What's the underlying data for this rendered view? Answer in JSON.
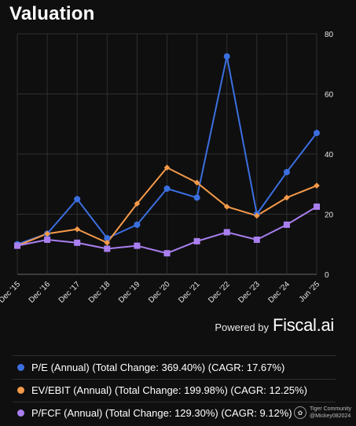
{
  "title": "Valuation",
  "powered": {
    "by": "Powered by",
    "brand": "Fiscal.ai"
  },
  "watermark": {
    "line1": "Tiger Community",
    "line2": "@Mickey082024",
    "icon": "tiger-logo-icon"
  },
  "legend": [
    {
      "label": "P/E (Annual) (Total Change: 369.40%) (CAGR: 17.67%)",
      "color": "#3b6fe0"
    },
    {
      "label": "EV/EBIT (Annual) (Total Change: 199.98%) (CAGR: 12.25%)",
      "color": "#f59a4a"
    },
    {
      "label": "P/FCF (Annual) (Total Change: 129.30%) (CAGR: 9.12%)",
      "color": "#a97ff0"
    }
  ],
  "chart_data": {
    "type": "line",
    "categories": [
      "Dec '15",
      "Dec '16",
      "Dec '17",
      "Dec '18",
      "Dec '19",
      "Dec '20",
      "Dec '21",
      "Dec '22",
      "Dec '23",
      "Dec '24",
      "Jun '25"
    ],
    "ylim": [
      0,
      80
    ],
    "yticks": [
      0,
      20,
      40,
      60,
      80
    ],
    "y_axis_side": "right",
    "grid": true,
    "series": [
      {
        "name": "P/E (Annual)",
        "color": "#3b6fe0",
        "marker": "circle",
        "values": [
          10,
          13.5,
          25,
          12,
          16.5,
          28.5,
          25.5,
          72.5,
          20,
          34,
          47
        ]
      },
      {
        "name": "EV/EBIT (Annual)",
        "color": "#f59a4a",
        "marker": "diamond",
        "values": [
          9.5,
          13.5,
          15,
          10.5,
          23.5,
          35.5,
          30.5,
          22.5,
          19.5,
          25.5,
          29.5
        ]
      },
      {
        "name": "P/FCF (Annual)",
        "color": "#a97ff0",
        "marker": "square",
        "values": [
          9.5,
          11.5,
          10.5,
          8.5,
          9.5,
          7,
          11,
          14,
          11.5,
          16.5,
          22.5
        ]
      }
    ]
  }
}
